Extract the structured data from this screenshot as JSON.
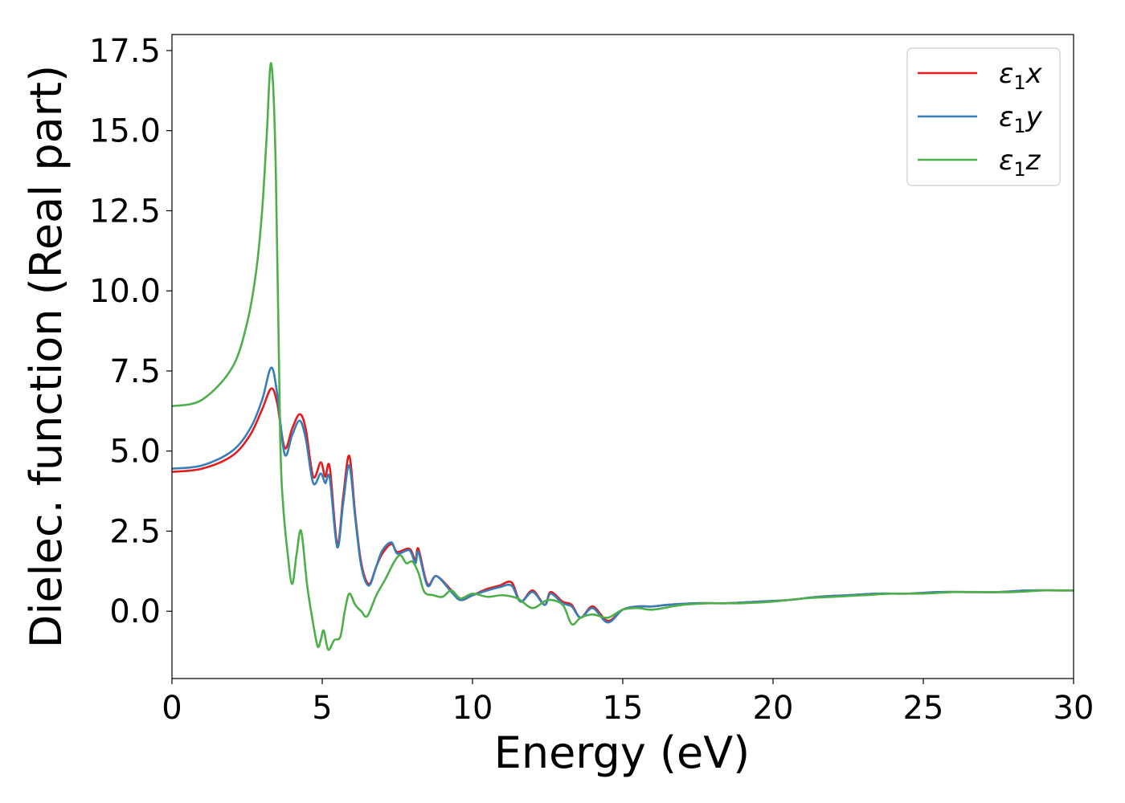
{
  "chart_data": {
    "type": "line",
    "title": "",
    "xlabel": "Energy (eV)",
    "ylabel": "Dielec. function (Real part)",
    "xlim": [
      0,
      30
    ],
    "ylim": [
      -2.1,
      18
    ],
    "xticks": [
      0,
      5,
      10,
      15,
      20,
      25,
      30
    ],
    "xtick_labels": [
      "0",
      "5",
      "10",
      "15",
      "20",
      "25",
      "30"
    ],
    "yticks": [
      0,
      2.5,
      5,
      7.5,
      10,
      12.5,
      15,
      17.5
    ],
    "ytick_labels": [
      "0.0",
      "2.5",
      "5.0",
      "7.5",
      "10.0",
      "12.5",
      "15.0",
      "17.5"
    ],
    "grid": false,
    "legend_position": "top-right",
    "series": [
      {
        "name": "ε₁x",
        "label_main": "ε",
        "label_sub": "1",
        "label_var": "x",
        "color": "#e41a1c",
        "x": [
          0,
          1,
          2,
          2.6,
          3.0,
          3.3,
          3.5,
          3.75,
          4.0,
          4.25,
          4.45,
          4.7,
          4.95,
          5.1,
          5.25,
          5.5,
          5.7,
          5.9,
          6.1,
          6.3,
          6.55,
          6.8,
          7.0,
          7.3,
          7.5,
          7.9,
          8.1,
          8.2,
          8.5,
          8.8,
          9.3,
          9.6,
          10.0,
          10.5,
          10.9,
          11.3,
          11.6,
          12.0,
          12.4,
          12.6,
          13.0,
          13.3,
          13.6,
          14.0,
          14.5,
          15.0,
          15.5,
          16.0,
          16.5,
          17.5,
          18.5,
          19.5,
          20.5,
          21.5,
          22.5,
          23.5,
          24.5,
          25.5,
          26.5,
          27.5,
          28.5,
          29.5,
          30
        ],
        "y": [
          4.35,
          4.45,
          4.85,
          5.5,
          6.3,
          6.95,
          6.5,
          5.1,
          5.7,
          6.15,
          5.7,
          4.2,
          4.65,
          4.2,
          4.5,
          2.1,
          3.6,
          4.85,
          3.0,
          1.5,
          0.85,
          1.4,
          1.8,
          2.1,
          1.85,
          1.95,
          1.6,
          1.95,
          0.85,
          1.1,
          0.65,
          0.35,
          0.5,
          0.7,
          0.8,
          0.9,
          0.3,
          0.65,
          0.2,
          0.6,
          0.3,
          0.2,
          -0.2,
          0.15,
          -0.3,
          0.05,
          0.15,
          0.15,
          0.2,
          0.25,
          0.25,
          0.3,
          0.35,
          0.45,
          0.5,
          0.55,
          0.55,
          0.6,
          0.6,
          0.6,
          0.65,
          0.65,
          0.65
        ]
      },
      {
        "name": "ε₁y",
        "label_main": "ε",
        "label_sub": "1",
        "label_var": "y",
        "color": "#377eb8",
        "x": [
          0,
          1,
          2,
          2.6,
          3.0,
          3.3,
          3.5,
          3.75,
          4.0,
          4.25,
          4.45,
          4.7,
          4.95,
          5.1,
          5.25,
          5.5,
          5.7,
          5.9,
          6.1,
          6.3,
          6.55,
          6.8,
          7.0,
          7.3,
          7.5,
          7.9,
          8.1,
          8.2,
          8.5,
          8.8,
          9.3,
          9.6,
          10.0,
          10.5,
          10.9,
          11.3,
          11.6,
          12.0,
          12.4,
          12.6,
          13.0,
          13.3,
          13.6,
          14.0,
          14.5,
          15.0,
          15.5,
          16.0,
          16.5,
          17.5,
          18.5,
          19.5,
          20.5,
          21.5,
          22.5,
          23.5,
          24.5,
          25.5,
          26.5,
          27.5,
          28.5,
          29.5,
          30
        ],
        "y": [
          4.45,
          4.55,
          5.0,
          5.7,
          6.6,
          7.6,
          6.8,
          4.9,
          5.5,
          5.95,
          5.4,
          4.0,
          4.3,
          4.0,
          4.15,
          2.0,
          3.4,
          4.55,
          2.9,
          1.4,
          0.8,
          1.4,
          1.9,
          2.15,
          1.8,
          1.9,
          1.5,
          1.85,
          0.8,
          1.1,
          0.6,
          0.35,
          0.5,
          0.65,
          0.75,
          0.8,
          0.3,
          0.6,
          0.2,
          0.55,
          0.25,
          0.15,
          -0.2,
          0.1,
          -0.35,
          0.05,
          0.15,
          0.15,
          0.2,
          0.25,
          0.25,
          0.3,
          0.35,
          0.45,
          0.5,
          0.55,
          0.55,
          0.6,
          0.6,
          0.6,
          0.65,
          0.65,
          0.65
        ]
      },
      {
        "name": "ε₁z",
        "label_main": "ε",
        "label_sub": "1",
        "label_var": "z",
        "color": "#4daf4a",
        "x": [
          0,
          1,
          2,
          2.5,
          2.8,
          3.0,
          3.15,
          3.3,
          3.45,
          3.6,
          3.7,
          3.85,
          4.0,
          4.15,
          4.3,
          4.5,
          4.7,
          4.85,
          4.95,
          5.05,
          5.2,
          5.4,
          5.6,
          5.75,
          5.9,
          6.1,
          6.3,
          6.5,
          6.8,
          7.1,
          7.4,
          7.6,
          7.8,
          8.0,
          8.2,
          8.4,
          8.7,
          9.0,
          9.3,
          9.6,
          10.0,
          10.5,
          11.0,
          11.5,
          12.0,
          12.5,
          13.0,
          13.3,
          13.6,
          14.0,
          14.5,
          15.0,
          15.5,
          16.0,
          17.0,
          18.0,
          19.0,
          20.0,
          21.0,
          22.0,
          23.0,
          24.0,
          25.0,
          26.0,
          27.0,
          28.0,
          29.0,
          30.0
        ],
        "y": [
          6.4,
          6.6,
          7.6,
          9.0,
          10.6,
          12.5,
          14.8,
          17.1,
          14.0,
          5.5,
          3.3,
          1.8,
          0.85,
          1.8,
          2.5,
          0.8,
          -0.4,
          -1.1,
          -0.9,
          -0.6,
          -1.2,
          -0.9,
          -0.8,
          0.0,
          0.55,
          0.2,
          0.0,
          -0.15,
          0.5,
          1.0,
          1.55,
          1.75,
          1.5,
          1.55,
          1.2,
          0.6,
          0.5,
          0.45,
          0.65,
          0.4,
          0.55,
          0.45,
          0.5,
          0.4,
          0.1,
          0.35,
          0.2,
          -0.4,
          -0.2,
          -0.1,
          -0.2,
          0.05,
          0.1,
          0.05,
          0.2,
          0.25,
          0.25,
          0.3,
          0.4,
          0.45,
          0.5,
          0.55,
          0.55,
          0.6,
          0.6,
          0.6,
          0.65,
          0.65
        ]
      }
    ]
  }
}
